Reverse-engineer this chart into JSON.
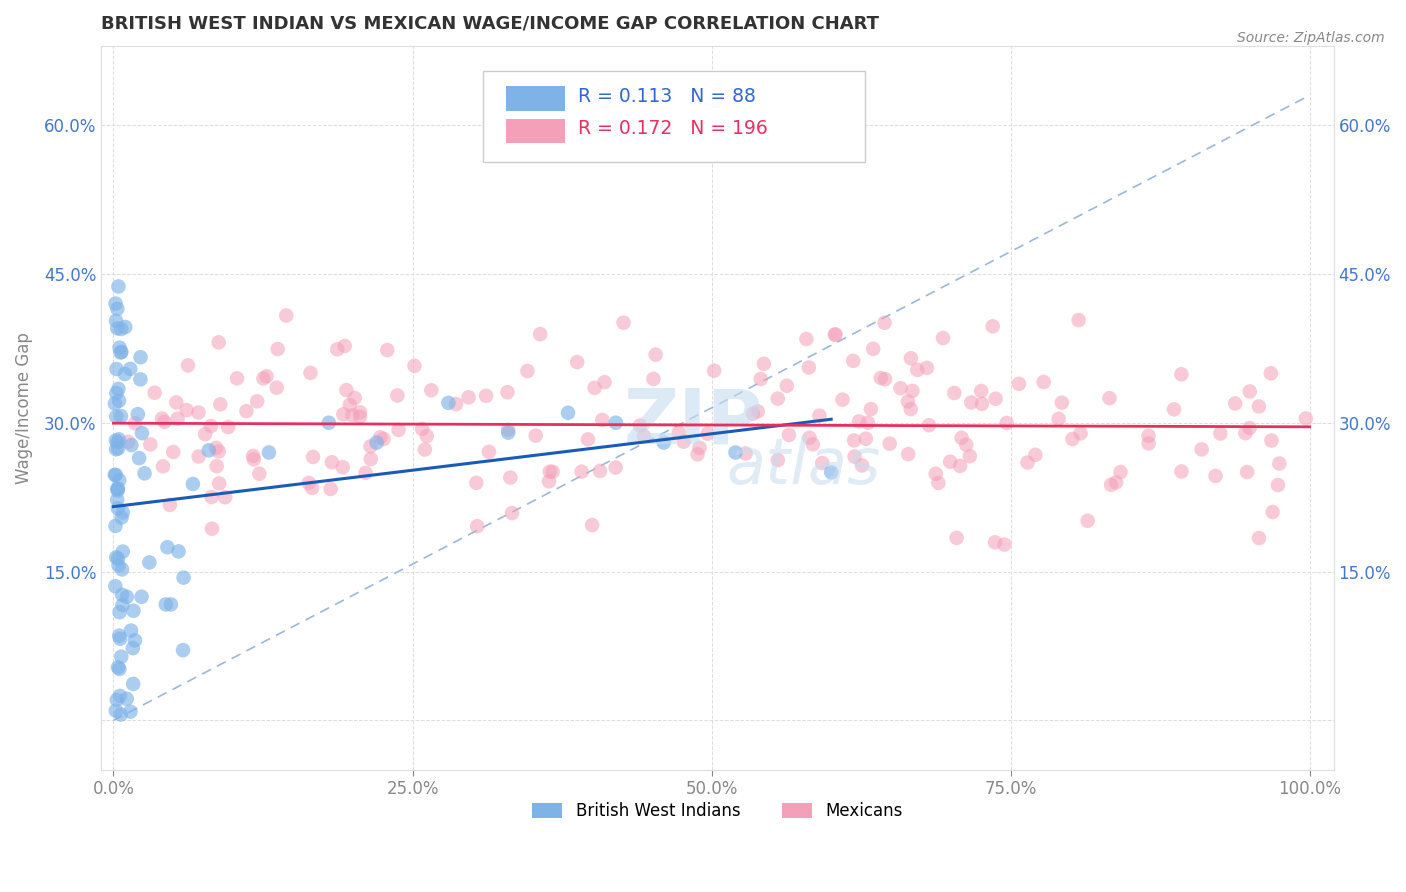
{
  "title": "BRITISH WEST INDIAN VS MEXICAN WAGE/INCOME GAP CORRELATION CHART",
  "source": "Source: ZipAtlas.com",
  "ylabel": "Wage/Income Gap",
  "xlim": [
    -0.01,
    1.02
  ],
  "ylim": [
    -0.05,
    0.68
  ],
  "yticks": [
    0.0,
    0.15,
    0.3,
    0.45,
    0.6
  ],
  "ytick_labels": [
    "",
    "15.0%",
    "30.0%",
    "45.0%",
    "60.0%"
  ],
  "xticks": [
    0.0,
    0.25,
    0.5,
    0.75,
    1.0
  ],
  "xtick_labels": [
    "0.0%",
    "25.0%",
    "50.0%",
    "75.0%",
    "100.0%"
  ],
  "legend_R_blue": "0.113",
  "legend_N_blue": "88",
  "legend_R_pink": "0.172",
  "legend_N_pink": "196",
  "blue_color": "#7EB3E8",
  "pink_color": "#F4A0B8",
  "blue_line_color": "#1A5BB5",
  "pink_line_color": "#E83060",
  "dashed_line_color": "#9BB8D8",
  "tick_color": "#4477CC",
  "title_color": "#333333",
  "source_color": "#888888"
}
